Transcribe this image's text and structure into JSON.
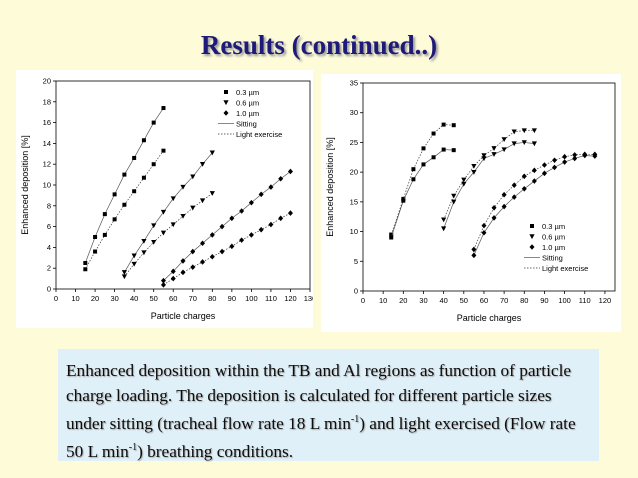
{
  "slide": {
    "title": "Results (continued..)",
    "caption": {
      "p1": "Enhanced deposition within the TB and Al regions as function of particle charge loading. The deposition is calculated for different particle sizes under sitting (tracheal flow rate 18 L min",
      "sup1": "-1",
      "p2": ") and light exercised (Flow rate 50 L min",
      "sup2": "-1",
      "p3": ") breathing conditions."
    }
  },
  "chart_data": [
    {
      "type": "scatter",
      "xlabel": "Particle charges",
      "ylabel": "Enhanced deposition [%]",
      "xlim": [
        0,
        130
      ],
      "ylim": [
        0,
        20
      ],
      "xticks": [
        0,
        10,
        20,
        30,
        40,
        50,
        60,
        70,
        80,
        90,
        100,
        110,
        120,
        130
      ],
      "yticks": [
        0,
        2,
        4,
        6,
        8,
        10,
        12,
        14,
        16,
        18,
        20
      ],
      "legend_position": "top-right",
      "legend": [
        "0.3 µm",
        "0.6 µm",
        "1.0 µm",
        "Sitting",
        "Light exercise"
      ],
      "series": [
        {
          "name": "0.3 µm",
          "condition": "Sitting",
          "marker": "square",
          "x": [
            15,
            20,
            25,
            30,
            35,
            40,
            45,
            50,
            55
          ],
          "y": [
            2.5,
            5.0,
            7.2,
            9.1,
            11.0,
            12.6,
            14.3,
            16.0,
            17.4
          ]
        },
        {
          "name": "0.3 µm",
          "condition": "Light exercise",
          "marker": "square",
          "x": [
            15,
            20,
            25,
            30,
            35,
            40,
            45,
            50,
            55
          ],
          "y": [
            1.9,
            3.6,
            5.2,
            6.7,
            8.1,
            9.4,
            10.7,
            12.0,
            13.3
          ]
        },
        {
          "name": "0.6 µm",
          "condition": "Sitting",
          "marker": "triangle",
          "x": [
            35,
            40,
            45,
            50,
            55,
            60,
            65,
            70,
            75,
            80
          ],
          "y": [
            1.6,
            3.2,
            4.6,
            6.1,
            7.4,
            8.7,
            9.8,
            10.8,
            12.0,
            13.1
          ]
        },
        {
          "name": "0.6 µm",
          "condition": "Light exercise",
          "marker": "triangle",
          "x": [
            35,
            40,
            45,
            50,
            55,
            60,
            65,
            70,
            75,
            80
          ],
          "y": [
            1.2,
            2.4,
            3.5,
            4.5,
            5.4,
            6.2,
            7.0,
            7.8,
            8.5,
            9.2
          ]
        },
        {
          "name": "1.0 µm",
          "condition": "Sitting",
          "marker": "diamond",
          "x": [
            55,
            60,
            65,
            70,
            75,
            80,
            85,
            90,
            95,
            100,
            105,
            110,
            115,
            120
          ],
          "y": [
            0.8,
            1.7,
            2.7,
            3.6,
            4.4,
            5.2,
            6.0,
            6.8,
            7.5,
            8.3,
            9.1,
            9.8,
            10.6,
            11.3
          ]
        },
        {
          "name": "1.0 µm",
          "condition": "Light exercise",
          "marker": "diamond",
          "x": [
            55,
            60,
            65,
            70,
            75,
            80,
            85,
            90,
            95,
            100,
            105,
            110,
            115,
            120
          ],
          "y": [
            0.4,
            1.0,
            1.6,
            2.1,
            2.6,
            3.1,
            3.6,
            4.1,
            4.7,
            5.2,
            5.7,
            6.2,
            6.8,
            7.3
          ]
        }
      ]
    },
    {
      "type": "scatter",
      "xlabel": "Particle charges",
      "ylabel": "Enhanced deposition [%]",
      "xlim": [
        0,
        125
      ],
      "ylim": [
        0,
        35
      ],
      "xticks": [
        0,
        10,
        20,
        30,
        40,
        50,
        60,
        70,
        80,
        90,
        100,
        110,
        120
      ],
      "yticks": [
        0,
        5,
        10,
        15,
        20,
        25,
        30,
        35
      ],
      "legend_position": "bottom-right",
      "legend": [
        "0.3 µm",
        "0.6 µm",
        "1.0 µm",
        "Sitting",
        "Light exercise"
      ],
      "series": [
        {
          "name": "0.3 µm",
          "condition": "Light exercise",
          "marker": "square",
          "x": [
            14,
            20,
            25,
            30,
            35,
            40,
            45
          ],
          "y": [
            9.5,
            15.5,
            20.5,
            24.0,
            26.5,
            28.0,
            27.9
          ]
        },
        {
          "name": "0.3 µm",
          "condition": "Sitting",
          "marker": "square",
          "x": [
            14,
            20,
            25,
            30,
            35,
            40,
            45
          ],
          "y": [
            9.0,
            15.2,
            18.8,
            21.3,
            22.5,
            23.8,
            23.7
          ]
        },
        {
          "name": "0.6 µm",
          "condition": "Light exercise",
          "marker": "triangle",
          "x": [
            40,
            45,
            50,
            55,
            60,
            65,
            70,
            75,
            80,
            85
          ],
          "y": [
            12.0,
            16.0,
            18.7,
            21.0,
            22.8,
            24.0,
            25.5,
            26.8,
            27.0,
            27.0
          ]
        },
        {
          "name": "0.6 µm",
          "condition": "Sitting",
          "marker": "triangle",
          "x": [
            40,
            45,
            50,
            55,
            60,
            65,
            70,
            75,
            80,
            85
          ],
          "y": [
            10.5,
            15.0,
            18.0,
            20.0,
            22.3,
            23.0,
            23.8,
            24.8,
            25.0,
            24.8
          ]
        },
        {
          "name": "1.0 µm",
          "condition": "Light exercise",
          "marker": "diamond",
          "x": [
            55,
            60,
            65,
            70,
            75,
            80,
            85,
            90,
            95,
            100,
            105,
            110,
            115
          ],
          "y": [
            7.0,
            11.0,
            14.0,
            16.2,
            17.8,
            19.3,
            20.3,
            21.2,
            22.0,
            22.6,
            22.9,
            23.0,
            23.0
          ]
        },
        {
          "name": "1.0 µm",
          "condition": "Sitting",
          "marker": "diamond",
          "x": [
            55,
            60,
            65,
            70,
            75,
            80,
            85,
            90,
            95,
            100,
            105,
            110,
            115
          ],
          "y": [
            6.0,
            9.8,
            12.3,
            14.2,
            15.8,
            17.2,
            18.5,
            19.8,
            20.8,
            21.7,
            22.3,
            22.8,
            22.7
          ]
        }
      ]
    }
  ]
}
